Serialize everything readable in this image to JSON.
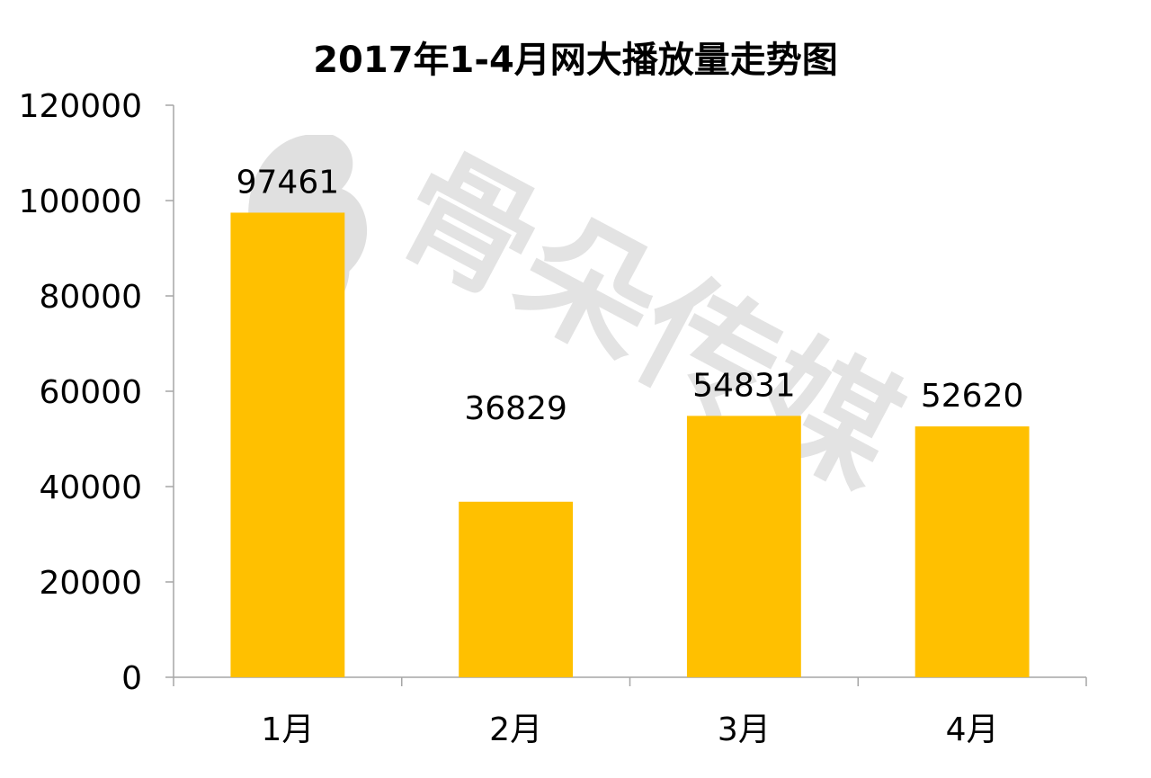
{
  "chart_data": {
    "type": "bar",
    "title": "2017年1-4月网大播放量走势图",
    "categories": [
      "1月",
      "2月",
      "3月",
      "4月"
    ],
    "values": [
      97461,
      36829,
      54831,
      52620
    ],
    "data_labels": [
      "97461",
      "36829",
      "54831",
      "52620"
    ],
    "ylim": [
      0,
      120000
    ],
    "yticks": [
      0,
      20000,
      40000,
      60000,
      80000,
      100000,
      120000
    ],
    "ytick_labels": [
      "0",
      "20000",
      "40000",
      "60000",
      "80000",
      "100000",
      "120000"
    ],
    "xlabel": "",
    "ylabel": "",
    "grid": false,
    "legend": "none",
    "bar_color": "#FFC000"
  },
  "watermark": {
    "text": "骨朵传媒",
    "color": "#d9d9d9"
  }
}
